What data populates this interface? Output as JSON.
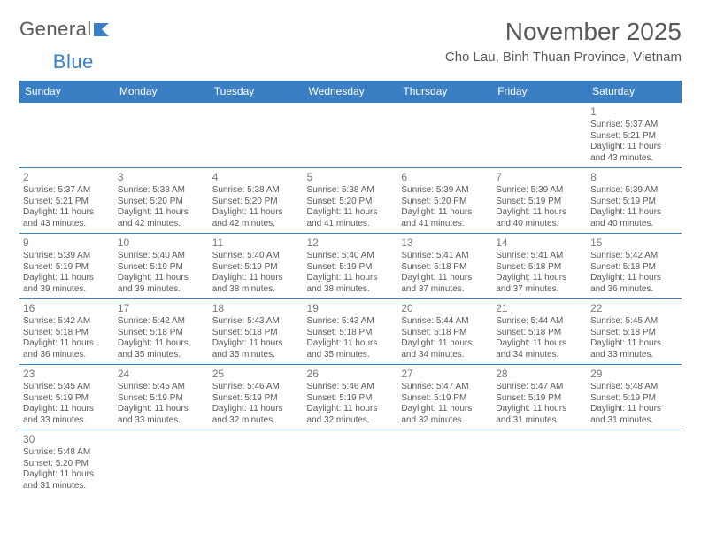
{
  "brand": {
    "part1": "General",
    "part2": "Blue"
  },
  "title": {
    "month": "November 2025",
    "location": "Cho Lau, Binh Thuan Province, Vietnam"
  },
  "columns": [
    "Sunday",
    "Monday",
    "Tuesday",
    "Wednesday",
    "Thursday",
    "Friday",
    "Saturday"
  ],
  "colors": {
    "header_bg": "#3a7fc4",
    "border": "#3a7fc4",
    "text": "#595959"
  },
  "first_weekday": 6,
  "days": [
    {
      "n": 1,
      "sr": "5:37 AM",
      "ss": "5:21 PM",
      "dl": "11 hours and 43 minutes."
    },
    {
      "n": 2,
      "sr": "5:37 AM",
      "ss": "5:21 PM",
      "dl": "11 hours and 43 minutes."
    },
    {
      "n": 3,
      "sr": "5:38 AM",
      "ss": "5:20 PM",
      "dl": "11 hours and 42 minutes."
    },
    {
      "n": 4,
      "sr": "5:38 AM",
      "ss": "5:20 PM",
      "dl": "11 hours and 42 minutes."
    },
    {
      "n": 5,
      "sr": "5:38 AM",
      "ss": "5:20 PM",
      "dl": "11 hours and 41 minutes."
    },
    {
      "n": 6,
      "sr": "5:39 AM",
      "ss": "5:20 PM",
      "dl": "11 hours and 41 minutes."
    },
    {
      "n": 7,
      "sr": "5:39 AM",
      "ss": "5:19 PM",
      "dl": "11 hours and 40 minutes."
    },
    {
      "n": 8,
      "sr": "5:39 AM",
      "ss": "5:19 PM",
      "dl": "11 hours and 40 minutes."
    },
    {
      "n": 9,
      "sr": "5:39 AM",
      "ss": "5:19 PM",
      "dl": "11 hours and 39 minutes."
    },
    {
      "n": 10,
      "sr": "5:40 AM",
      "ss": "5:19 PM",
      "dl": "11 hours and 39 minutes."
    },
    {
      "n": 11,
      "sr": "5:40 AM",
      "ss": "5:19 PM",
      "dl": "11 hours and 38 minutes."
    },
    {
      "n": 12,
      "sr": "5:40 AM",
      "ss": "5:19 PM",
      "dl": "11 hours and 38 minutes."
    },
    {
      "n": 13,
      "sr": "5:41 AM",
      "ss": "5:18 PM",
      "dl": "11 hours and 37 minutes."
    },
    {
      "n": 14,
      "sr": "5:41 AM",
      "ss": "5:18 PM",
      "dl": "11 hours and 37 minutes."
    },
    {
      "n": 15,
      "sr": "5:42 AM",
      "ss": "5:18 PM",
      "dl": "11 hours and 36 minutes."
    },
    {
      "n": 16,
      "sr": "5:42 AM",
      "ss": "5:18 PM",
      "dl": "11 hours and 36 minutes."
    },
    {
      "n": 17,
      "sr": "5:42 AM",
      "ss": "5:18 PM",
      "dl": "11 hours and 35 minutes."
    },
    {
      "n": 18,
      "sr": "5:43 AM",
      "ss": "5:18 PM",
      "dl": "11 hours and 35 minutes."
    },
    {
      "n": 19,
      "sr": "5:43 AM",
      "ss": "5:18 PM",
      "dl": "11 hours and 35 minutes."
    },
    {
      "n": 20,
      "sr": "5:44 AM",
      "ss": "5:18 PM",
      "dl": "11 hours and 34 minutes."
    },
    {
      "n": 21,
      "sr": "5:44 AM",
      "ss": "5:18 PM",
      "dl": "11 hours and 34 minutes."
    },
    {
      "n": 22,
      "sr": "5:45 AM",
      "ss": "5:18 PM",
      "dl": "11 hours and 33 minutes."
    },
    {
      "n": 23,
      "sr": "5:45 AM",
      "ss": "5:19 PM",
      "dl": "11 hours and 33 minutes."
    },
    {
      "n": 24,
      "sr": "5:45 AM",
      "ss": "5:19 PM",
      "dl": "11 hours and 33 minutes."
    },
    {
      "n": 25,
      "sr": "5:46 AM",
      "ss": "5:19 PM",
      "dl": "11 hours and 32 minutes."
    },
    {
      "n": 26,
      "sr": "5:46 AM",
      "ss": "5:19 PM",
      "dl": "11 hours and 32 minutes."
    },
    {
      "n": 27,
      "sr": "5:47 AM",
      "ss": "5:19 PM",
      "dl": "11 hours and 32 minutes."
    },
    {
      "n": 28,
      "sr": "5:47 AM",
      "ss": "5:19 PM",
      "dl": "11 hours and 31 minutes."
    },
    {
      "n": 29,
      "sr": "5:48 AM",
      "ss": "5:19 PM",
      "dl": "11 hours and 31 minutes."
    },
    {
      "n": 30,
      "sr": "5:48 AM",
      "ss": "5:20 PM",
      "dl": "11 hours and 31 minutes."
    }
  ],
  "labels": {
    "sunrise": "Sunrise:",
    "sunset": "Sunset:",
    "daylight": "Daylight:"
  }
}
